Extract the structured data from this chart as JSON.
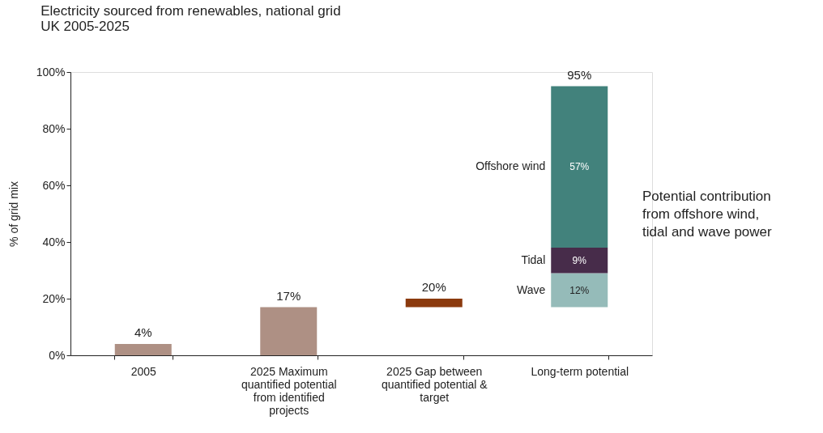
{
  "chart_data": {
    "type": "bar",
    "stacked": true,
    "title": "Electricity sourced from renewables, national grid",
    "subtitle": "UK 2005-2025",
    "ylabel": "% of grid mix",
    "categories": [
      "2005",
      "2025 Maximum quantified potential from identified projects",
      "2025 Gap between quantified potential & target",
      "Long-term potential"
    ],
    "series": [
      {
        "color": "#ae9084",
        "values": [
          4,
          17,
          null,
          null
        ],
        "base": [
          0,
          0,
          null,
          null
        ],
        "value_labels": [
          "4%",
          "17%",
          null,
          null
        ]
      },
      {
        "color": "#8b3a0e",
        "values": [
          null,
          null,
          3,
          null
        ],
        "base": [
          null,
          null,
          17,
          null
        ]
      },
      {
        "name": "Wave",
        "color": "#95bbb9",
        "values": [
          null,
          null,
          null,
          12
        ],
        "base": [
          null,
          null,
          null,
          17
        ],
        "value_labels": [
          null,
          null,
          null,
          "12%"
        ]
      },
      {
        "name": "Tidal",
        "color": "#472c4a",
        "values": [
          null,
          null,
          null,
          9
        ],
        "base": [
          null,
          null,
          null,
          29
        ],
        "value_labels": [
          null,
          null,
          null,
          "9%"
        ]
      },
      {
        "name": "Offshore wind",
        "color": "#42827c",
        "values": [
          null,
          null,
          null,
          57
        ],
        "base": [
          null,
          null,
          null,
          38
        ],
        "value_labels": [
          null,
          null,
          null,
          "57%"
        ]
      }
    ],
    "ylim": [
      0,
      100
    ],
    "yticks": [
      {
        "value": 0,
        "label": "0%"
      },
      {
        "value": 20,
        "label": "20%"
      },
      {
        "value": 40,
        "label": "40%"
      },
      {
        "value": 60,
        "label": "60%"
      },
      {
        "value": 80,
        "label": "80%"
      },
      {
        "value": 100,
        "label": "100%"
      }
    ],
    "annotations": [
      {
        "text": "20%",
        "x": "2025 Gap between quantified potential & target",
        "y": 20
      },
      {
        "text": "95%",
        "x": "Long-term potential",
        "y": 95
      },
      "Potential contribution from offshore wind, tidal and wave power"
    ],
    "grid": false,
    "legend": false
  }
}
